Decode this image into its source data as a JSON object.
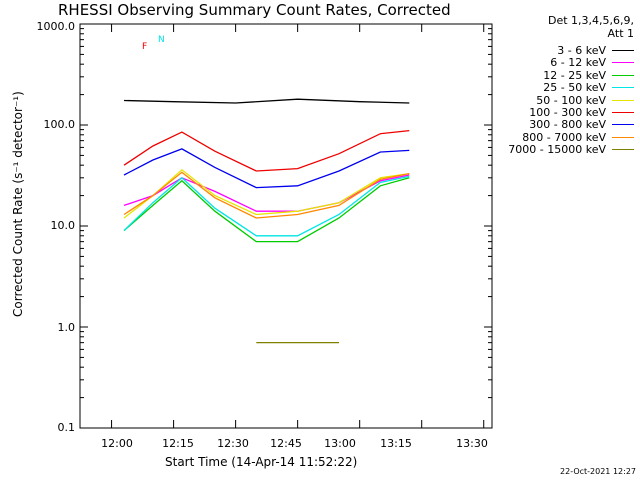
{
  "chart_data": {
    "type": "line",
    "title": "RHESSI Observing Summary Count Rates, Corrected",
    "xlabel": "Start Time (14-Apr-14 11:52:22)",
    "ylabel": "Corrected Count Rate (s⁻¹ detector⁻¹)",
    "yscale": "log",
    "ylim": [
      0.1,
      1000
    ],
    "xlim": [
      "11:52:22",
      "13:32:00"
    ],
    "xticks": [
      "12:00",
      "12:15",
      "12:30",
      "12:45",
      "13:00",
      "13:15",
      "13:30"
    ],
    "yticks": [
      "0.1",
      "1.0",
      "10.0",
      "100.0",
      "1000.0"
    ],
    "legend_header": [
      "Det 1,3,4,5,6,9,",
      "Att 1"
    ],
    "legend_position": "right",
    "series": [
      {
        "name": "3 - 6 keV",
        "color": "#000000",
        "x": [
          "12:03",
          "12:15",
          "12:30",
          "12:45",
          "13:00",
          "13:12"
        ],
        "values": [
          175,
          170,
          165,
          180,
          170,
          165
        ]
      },
      {
        "name": "6 - 12 keV",
        "color": "#ff00ff",
        "x": [
          "12:03",
          "12:10",
          "12:17",
          "12:25",
          "12:35",
          "12:45",
          "12:55",
          "13:05",
          "13:12"
        ],
        "values": [
          16,
          20,
          30,
          22,
          14,
          14,
          17,
          28,
          32
        ]
      },
      {
        "name": "12 - 25 keV",
        "color": "#00cc00",
        "x": [
          "12:03",
          "12:10",
          "12:17",
          "12:25",
          "12:35",
          "12:45",
          "12:55",
          "13:05",
          "13:12"
        ],
        "values": [
          9,
          16,
          28,
          14,
          7,
          7,
          12,
          25,
          30
        ]
      },
      {
        "name": "25 - 50 keV",
        "color": "#00e5e5",
        "x": [
          "12:03",
          "12:10",
          "12:17",
          "12:25",
          "12:35",
          "12:45",
          "12:55",
          "13:05",
          "13:12"
        ],
        "values": [
          9,
          17,
          30,
          15,
          8,
          8,
          13,
          27,
          31
        ]
      },
      {
        "name": "50 - 100 keV",
        "color": "#e5e500",
        "x": [
          "12:03",
          "12:10",
          "12:17",
          "12:25",
          "12:35",
          "12:45",
          "12:55",
          "13:05",
          "13:12"
        ],
        "values": [
          12,
          20,
          36,
          20,
          13,
          14,
          17,
          30,
          33
        ]
      },
      {
        "name": "100 - 300 keV",
        "color": "#ee0000",
        "x": [
          "12:03",
          "12:10",
          "12:17",
          "12:25",
          "12:35",
          "12:45",
          "12:55",
          "13:05",
          "13:12"
        ],
        "values": [
          40,
          62,
          85,
          55,
          35,
          37,
          52,
          82,
          88
        ]
      },
      {
        "name": "300 - 800 keV",
        "color": "#0000ee",
        "x": [
          "12:03",
          "12:10",
          "12:17",
          "12:25",
          "12:35",
          "12:45",
          "12:55",
          "13:05",
          "13:12"
        ],
        "values": [
          32,
          45,
          58,
          38,
          24,
          25,
          35,
          54,
          56
        ]
      },
      {
        "name": "800 - 7000 keV",
        "color": "#ff8800",
        "x": [
          "12:03",
          "12:10",
          "12:17",
          "12:25",
          "12:35",
          "12:45",
          "12:55",
          "13:05",
          "13:12"
        ],
        "values": [
          13,
          20,
          34,
          19,
          12,
          13,
          16,
          29,
          33
        ]
      },
      {
        "name": "7000 - 15000 keV",
        "color": "#808000",
        "x": [
          "12:35",
          "12:55"
        ],
        "values": [
          0.7,
          0.7
        ]
      }
    ],
    "flags": [
      {
        "label": "F",
        "color": "#ee0000"
      },
      {
        "label": "N",
        "color": "#00e5e5"
      }
    ]
  },
  "timestamp": "22-Oct-2021 12:27"
}
